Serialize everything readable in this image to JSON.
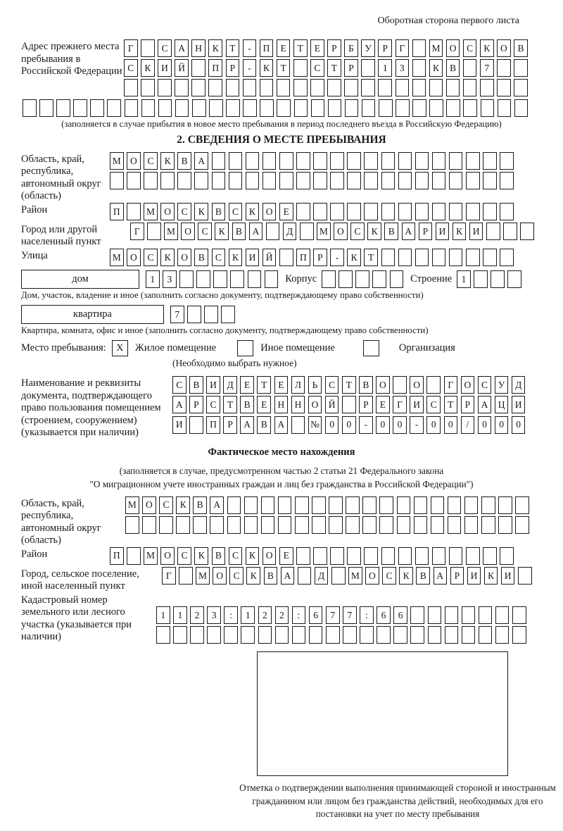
{
  "page": {
    "header_note": "Оборотная сторона первого листа"
  },
  "prev_address": {
    "label": "Адрес прежнего места пребывания в Российской Федерации",
    "rows": [
      {
        "cells": 24,
        "text": "Г САНКТ-ПЕТЕРБУРГ МОСКОВ"
      },
      {
        "cells": 24,
        "text": "СКИЙ ПР-КТ СТР 13 КВ 7"
      },
      {
        "cells": 24,
        "text": ""
      }
    ],
    "overflow_row": {
      "cells": 30,
      "text": ""
    },
    "note": "(заполняется в случае прибытия в новое место пребывания в период последнего въезда в Российскую Федерацию)"
  },
  "section2": {
    "title": "2. СВЕДЕНИЯ О МЕСТЕ ПРЕБЫВАНИЯ",
    "region": {
      "label": "Область, край, республика, автономный округ (область)",
      "rows": [
        {
          "cells": 24,
          "text": "МОСКВА"
        },
        {
          "cells": 24,
          "text": ""
        }
      ]
    },
    "district": {
      "label": "Район",
      "row": {
        "cells": 24,
        "text": "П МОСКВСКОЕ"
      }
    },
    "city": {
      "label": "Город или другой населенный пункт",
      "row": {
        "cells": 24,
        "text": "Г МОСКВА Д МОСКВАРИКИ"
      }
    },
    "street": {
      "label": "Улица",
      "row": {
        "cells": 24,
        "text": "МОСКОВСКИЙ ПР-КТ"
      }
    },
    "house": {
      "label": "дом",
      "row": {
        "cells": 8,
        "text": "13"
      }
    },
    "building": {
      "label": "Корпус",
      "row": {
        "cells": 5,
        "text": ""
      }
    },
    "structure": {
      "label": "Строение",
      "row": {
        "cells": 4,
        "text": "1"
      }
    },
    "house_note": "Дом, участок, владение и иное (заполнить согласно документу, подтверждающему право собственности)",
    "apartment": {
      "label": "квартира",
      "row": {
        "cells": 4,
        "text": "7"
      }
    },
    "apartment_note": "Квартира, комната, офис и иное (заполнить согласно документу, подтверждающему право собственности)",
    "stay_type": {
      "label": "Место пребывания:",
      "options": [
        {
          "mark": "X",
          "label": "Жилое помещение"
        },
        {
          "mark": "",
          "label": "Иное помещение"
        },
        {
          "mark": "",
          "label": "Организация"
        }
      ],
      "note": "(Необходимо выбрать нужное)"
    },
    "document": {
      "label": "Наименование и реквизиты документа, подтверждающего право пользования помещением (строением, сооружением) (указывается при наличии)",
      "rows": [
        {
          "cells": 21,
          "text": "СВИДЕТЕЛЬСТВО О ГОСУД"
        },
        {
          "cells": 21,
          "text": "АРСТВЕННОЙ РЕГИСТРАЦИ"
        },
        {
          "cells": 21,
          "text": "И ПРАВА №00-00-00/000"
        }
      ]
    }
  },
  "actual_location": {
    "title": "Фактическое место нахождения",
    "note_line1": "(заполняется в случае, предусмотренном частью 2 статьи 21 Федерального закона",
    "note_line2": "\"О миграционном учете иностранных граждан и лиц без гражданства в Российской Федерации\")",
    "region": {
      "label": "Область, край, республика, автономный округ (область)",
      "rows": [
        {
          "cells": 24,
          "text": "МОСКВА"
        },
        {
          "cells": 24,
          "text": ""
        }
      ]
    },
    "district": {
      "label": "Район",
      "row": {
        "cells": 24,
        "text": "П МОСКВСКОЕ"
      }
    },
    "city": {
      "label": "Город, сельское поселение, иной населенный пункт",
      "row": {
        "cells": 22,
        "text": "Г МОСКВА Д МОСКВАРИКИ"
      }
    },
    "cadastral": {
      "label": "Кадастровый номер земельного или лесного участка (указывается при наличии)",
      "rows": [
        {
          "cells": 22,
          "text": "1123:122:677:66"
        },
        {
          "cells": 22,
          "text": ""
        }
      ]
    },
    "stamp_note": "Отметка о подтверждении выполнения принимающей стороной и иностранным гражданином или лицом без гражданства действий, необходимых для его постановки на учет по месту пребывания"
  }
}
